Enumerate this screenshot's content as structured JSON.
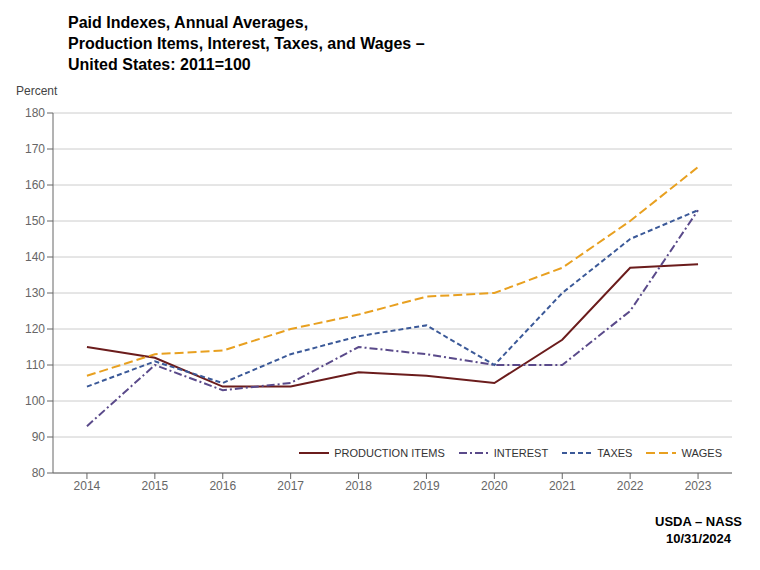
{
  "chart_data": {
    "type": "line",
    "title": "Paid Indexes, Annual Averages,\nProduction Items, Interest, Taxes, and Wages –\nUnited States: 2011=100",
    "ylabel": "Percent",
    "annotations": [
      "USDA – NASS\n10/31/2024"
    ],
    "x": [
      2014,
      2015,
      2016,
      2017,
      2018,
      2019,
      2020,
      2021,
      2022,
      2023
    ],
    "xlim": [
      2013.5,
      2023.5
    ],
    "xticks": [
      2014,
      2015,
      2016,
      2017,
      2018,
      2019,
      2020,
      2021,
      2022,
      2023
    ],
    "ylim": [
      80,
      180
    ],
    "yticks": [
      80,
      90,
      100,
      110,
      120,
      130,
      140,
      150,
      160,
      170,
      180
    ],
    "grid": true,
    "legend": "lower right",
    "series": [
      {
        "name": "PRODUCTION ITEMS",
        "color": "#6B1C1C",
        "line_style": "solid",
        "values": [
          115,
          112,
          104,
          104,
          108,
          107,
          105,
          117,
          137,
          138
        ]
      },
      {
        "name": "INTEREST",
        "color": "#5A4A8A",
        "line_style": "dashdot",
        "values": [
          93,
          110,
          103,
          105,
          115,
          113,
          110,
          110,
          125,
          153
        ]
      },
      {
        "name": "TAXES",
        "color": "#3B5998",
        "line_style": "dashed",
        "values": [
          104,
          111,
          105,
          113,
          118,
          121,
          110,
          130,
          145,
          153
        ]
      },
      {
        "name": "WAGES",
        "color": "#E8A020",
        "line_style": "longdash",
        "values": [
          107,
          113,
          114,
          120,
          124,
          129,
          130,
          137,
          150,
          165
        ]
      }
    ]
  }
}
